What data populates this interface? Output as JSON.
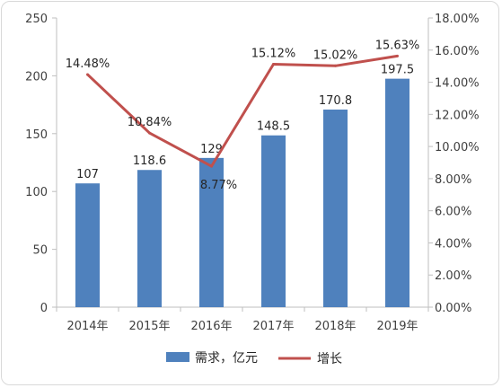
{
  "chart_data": {
    "type": "bar+line",
    "categories": [
      "2014年",
      "2015年",
      "2016年",
      "2017年",
      "2018年",
      "2019年"
    ],
    "series": [
      {
        "name": "需求，亿元",
        "type": "bar",
        "axis": "left",
        "values": [
          107,
          118.6,
          129,
          148.5,
          170.8,
          197.5
        ],
        "labels": [
          "107",
          "118.6",
          "129",
          "148.5",
          "170.8",
          "197.5"
        ],
        "color": "#4f81bd"
      },
      {
        "name": "增长",
        "type": "line",
        "axis": "right",
        "values": [
          14.48,
          10.84,
          8.77,
          15.12,
          15.02,
          15.63
        ],
        "labels": [
          "14.48%",
          "10.84%",
          "8.77%",
          "15.12%",
          "15.02%",
          "15.63%"
        ],
        "color": "#c0504d"
      }
    ],
    "y_left": {
      "range": [
        0,
        250
      ],
      "ticks": [
        "0",
        "50",
        "100",
        "150",
        "200",
        "250"
      ]
    },
    "y_right": {
      "range": [
        0,
        18
      ],
      "ticks": [
        "0.00%",
        "2.00%",
        "4.00%",
        "6.00%",
        "8.00%",
        "10.00%",
        "12.00%",
        "14.00%",
        "16.00%",
        "18.00%"
      ]
    },
    "grid": false,
    "legend": "bottom"
  }
}
